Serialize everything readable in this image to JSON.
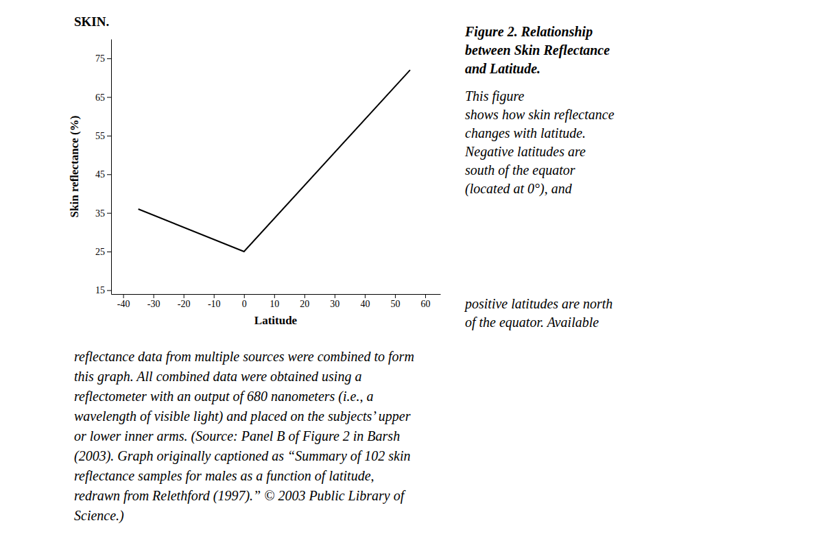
{
  "chart_data": {
    "type": "line",
    "title": "SKIN.",
    "x_label": "Latitude",
    "y_label": "Skin reflectance (%)",
    "x": [
      -35,
      0,
      55
    ],
    "series": [
      {
        "color": "#000000",
        "values": [
          36,
          25,
          72
        ]
      }
    ],
    "xlim": [
      -44,
      65
    ],
    "ylim": [
      14,
      80
    ],
    "xticks": [
      -40,
      -30,
      -20,
      -10,
      0,
      10,
      20,
      30,
      40,
      50,
      60
    ],
    "yticks": [
      15,
      25,
      35,
      45,
      55,
      65,
      75
    ],
    "grid": false,
    "annotations": [
      [
        "Figure 2. Relationship",
        "between Skin Reflectance",
        "and Latitude."
      ],
      [
        "This figure",
        "shows how skin reflectance",
        "changes with latitude.",
        "Negative latitudes are",
        "south of the equator",
        "(located at 0°), and"
      ],
      [
        "positive latitudes are north",
        "of the equator. Available"
      ],
      [
        "reflectance data from multiple sources were combined to form",
        "this graph. All combined data were obtained using a",
        "reflectometer with an output of 680 nanometers (i.e., a",
        "wavelength of visible light) and placed on the subjects’ upper",
        "or lower inner arms. (Source: Panel B of Figure 2 in Barsh",
        "(2003). Graph originally captioned as “Summary of 102 skin",
        "reflectance samples for males as a function of latitude,",
        "redrawn from Relethford (1997).” © 2003 Public Library of",
        "Science.)"
      ]
    ]
  }
}
